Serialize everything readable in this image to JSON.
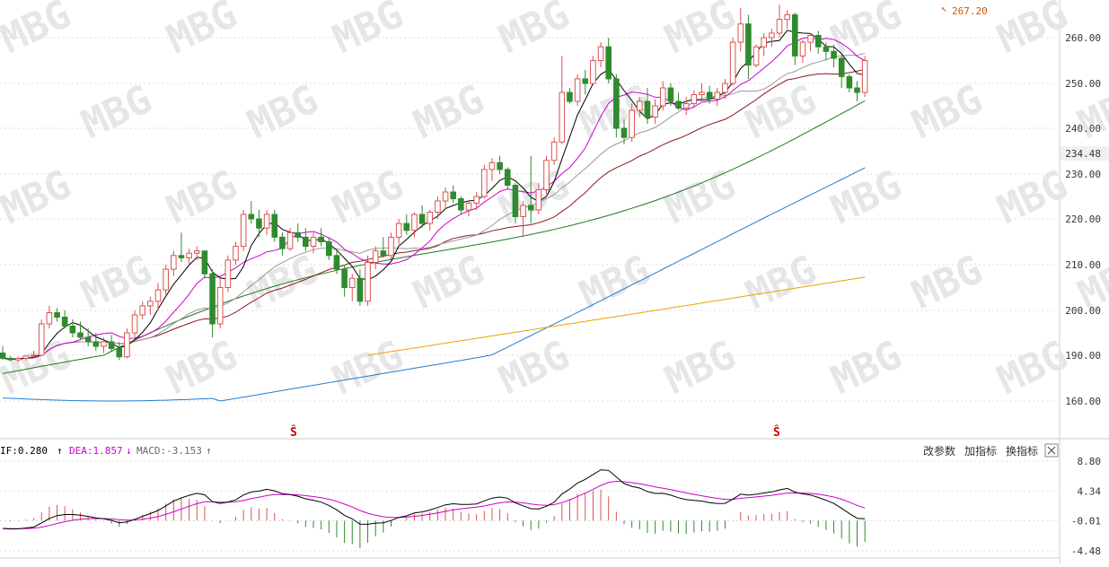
{
  "colors": {
    "up": "#d9534f",
    "down": "#2e8b2e",
    "ma5": "#000000",
    "ma10": "#cc00cc",
    "ma20": "#999999",
    "ma30": "#8b1a1a",
    "ma60": "#1f7a1f",
    "ma120": "#1e7ed6",
    "ma250": "#f0a000",
    "dif": "#000000",
    "dea": "#cc00cc",
    "grid": "#dddddd",
    "watermark": "#e6e6e6"
  },
  "watermark_text": "MBG",
  "main_chart": {
    "y_ticks": [
      "260.00",
      "250.00",
      "240.00",
      "234.48",
      "230.00",
      "220.00",
      "210.00",
      "200.00",
      "190.00",
      "160.00"
    ],
    "highlight_tick": "234.48",
    "high_annotation": "267.20",
    "event_markers": [
      "Ŝ",
      "Ŝ"
    ]
  },
  "macd_panel": {
    "dif_label": "IF:0.280",
    "dif_arrow": "↑",
    "dea_label": "DEA:1.857",
    "dea_arrow": "↓",
    "macd_label": "MACD:-3.153",
    "macd_arrow": "↑",
    "buttons": [
      "改参数",
      "加指标",
      "换指标"
    ],
    "close_icon": "close-icon",
    "y_ticks": [
      "8.80",
      "4.34",
      "-0.01",
      "-4.48"
    ]
  },
  "chart_data": {
    "type": "candlestick",
    "candles": [
      [
        190.5,
        192.0,
        187.0,
        188.0
      ],
      [
        188.0,
        189.5,
        186.0,
        187.0
      ],
      [
        187.0,
        189.0,
        185.5,
        188.0
      ],
      [
        188.0,
        190.0,
        186.5,
        189.5
      ],
      [
        189.5,
        191.0,
        188.0,
        190.0
      ],
      [
        190.0,
        198.0,
        189.5,
        197.0
      ],
      [
        197.0,
        201.0,
        196.0,
        199.5
      ],
      [
        199.5,
        200.5,
        197.5,
        198.5
      ],
      [
        198.5,
        200.0,
        196.0,
        196.5
      ],
      [
        196.5,
        198.0,
        194.0,
        195.0
      ],
      [
        195.0,
        197.5,
        193.5,
        194.0
      ],
      [
        194.0,
        196.0,
        192.0,
        193.0
      ],
      [
        193.0,
        195.0,
        191.0,
        192.0
      ],
      [
        192.0,
        194.0,
        190.5,
        193.0
      ],
      [
        193.0,
        194.5,
        191.0,
        191.5
      ],
      [
        191.5,
        193.0,
        187.0,
        189.0
      ],
      [
        189.0,
        196.0,
        188.0,
        195.0
      ],
      [
        195.0,
        200.0,
        194.0,
        199.0
      ],
      [
        199.0,
        202.0,
        198.0,
        201.0
      ],
      [
        201.0,
        203.0,
        199.0,
        202.0
      ],
      [
        202.0,
        206.0,
        200.0,
        204.5
      ],
      [
        204.5,
        210.0,
        203.5,
        209.0
      ],
      [
        209.0,
        213.0,
        207.5,
        212.0
      ],
      [
        212.0,
        217.0,
        210.5,
        211.5
      ],
      [
        211.5,
        213.5,
        210.0,
        212.5
      ],
      [
        212.5,
        214.0,
        211.0,
        213.0
      ],
      [
        213.0,
        212.5,
        207.0,
        208.0
      ],
      [
        208.0,
        209.0,
        194.0,
        197.0
      ],
      [
        197.0,
        207.0,
        196.0,
        205.0
      ],
      [
        205.0,
        212.0,
        204.0,
        211.0
      ],
      [
        211.0,
        215.0,
        210.0,
        214.0
      ],
      [
        214.0,
        222.0,
        213.0,
        221.0
      ],
      [
        221.0,
        224.0,
        219.0,
        220.0
      ],
      [
        220.0,
        222.0,
        216.0,
        218.0
      ],
      [
        218.0,
        222.0,
        216.5,
        221.0
      ],
      [
        221.0,
        222.0,
        215.0,
        216.0
      ],
      [
        216.0,
        217.0,
        212.0,
        213.5
      ],
      [
        213.5,
        218.0,
        213.0,
        217.0
      ],
      [
        217.0,
        219.0,
        215.0,
        216.0
      ],
      [
        216.0,
        218.0,
        213.0,
        214.0
      ],
      [
        214.0,
        217.0,
        212.5,
        216.0
      ],
      [
        216.0,
        218.0,
        214.0,
        215.0
      ],
      [
        215.0,
        216.0,
        211.0,
        212.0
      ],
      [
        212.0,
        213.5,
        208.0,
        209.0
      ],
      [
        209.0,
        210.0,
        203.0,
        205.0
      ],
      [
        205.0,
        208.0,
        202.0,
        207.0
      ],
      [
        207.0,
        209.0,
        201.0,
        202.0
      ],
      [
        202.0,
        212.0,
        201.0,
        210.5
      ],
      [
        210.5,
        214.0,
        209.0,
        213.0
      ],
      [
        213.0,
        216.0,
        211.5,
        212.0
      ],
      [
        212.0,
        217.0,
        211.0,
        216.0
      ],
      [
        216.0,
        220.0,
        214.5,
        219.0
      ],
      [
        219.0,
        221.0,
        216.5,
        217.5
      ],
      [
        217.5,
        221.5,
        216.0,
        221.0
      ],
      [
        221.0,
        223.0,
        218.0,
        219.0
      ],
      [
        219.0,
        222.0,
        217.5,
        221.5
      ],
      [
        221.5,
        225.0,
        220.0,
        224.0
      ],
      [
        224.0,
        227.0,
        222.0,
        226.0
      ],
      [
        226.0,
        227.5,
        223.5,
        224.5
      ],
      [
        224.5,
        225.0,
        221.0,
        222.0
      ],
      [
        222.0,
        224.0,
        220.5,
        223.5
      ],
      [
        223.5,
        226.0,
        222.0,
        225.0
      ],
      [
        225.0,
        232.0,
        224.5,
        231.0
      ],
      [
        231.0,
        233.5,
        228.5,
        232.5
      ],
      [
        232.5,
        234.0,
        230.0,
        231.0
      ],
      [
        231.0,
        231.5,
        226.5,
        227.5
      ],
      [
        227.5,
        228.0,
        219.0,
        220.5
      ],
      [
        220.5,
        224.0,
        216.0,
        223.0
      ],
      [
        223.0,
        234.0,
        219.0,
        222.0
      ],
      [
        222.0,
        228.0,
        221.0,
        226.5
      ],
      [
        226.5,
        234.0,
        225.5,
        233.0
      ],
      [
        233.0,
        238.0,
        232.0,
        237.0
      ],
      [
        237.0,
        256.0,
        236.5,
        248.0
      ],
      [
        248.0,
        249.0,
        245.5,
        246.0
      ],
      [
        246.0,
        252.0,
        245.0,
        251.0
      ],
      [
        251.0,
        253.0,
        247.5,
        250.0
      ],
      [
        250.0,
        256.0,
        249.5,
        255.0
      ],
      [
        255.0,
        259.0,
        253.5,
        258.0
      ],
      [
        258.0,
        260.0,
        250.0,
        251.0
      ],
      [
        251.0,
        252.0,
        238.0,
        240.0
      ],
      [
        240.0,
        242.0,
        236.5,
        238.0
      ],
      [
        238.0,
        245.5,
        237.0,
        244.0
      ],
      [
        244.0,
        247.0,
        242.5,
        246.0
      ],
      [
        246.0,
        249.0,
        241.0,
        242.5
      ],
      [
        242.5,
        246.5,
        241.0,
        245.0
      ],
      [
        245.0,
        250.5,
        244.0,
        249.0
      ],
      [
        249.0,
        250.0,
        245.0,
        246.0
      ],
      [
        246.0,
        248.0,
        244.0,
        244.5
      ],
      [
        244.5,
        247.0,
        243.0,
        245.5
      ],
      [
        245.5,
        248.5,
        244.5,
        247.5
      ],
      [
        247.5,
        250.0,
        246.0,
        248.0
      ],
      [
        248.0,
        249.5,
        245.5,
        246.5
      ],
      [
        246.5,
        249.0,
        245.0,
        248.0
      ],
      [
        248.0,
        251.0,
        246.5,
        250.0
      ],
      [
        250.0,
        260.0,
        249.5,
        259.0
      ],
      [
        259.0,
        266.5,
        257.0,
        263.0
      ],
      [
        263.0,
        265.0,
        251.0,
        254.0
      ],
      [
        254.0,
        258.5,
        253.5,
        258.0
      ],
      [
        258.0,
        261.0,
        256.0,
        260.0
      ],
      [
        260.0,
        262.0,
        258.0,
        261.0
      ],
      [
        261.0,
        267.2,
        260.0,
        264.0
      ],
      [
        264.0,
        266.0,
        262.0,
        265.0
      ],
      [
        265.0,
        265.5,
        254.0,
        256.0
      ],
      [
        256.0,
        259.5,
        254.5,
        259.0
      ],
      [
        259.0,
        261.0,
        257.0,
        260.5
      ],
      [
        260.5,
        261.5,
        256.5,
        258.0
      ],
      [
        258.0,
        259.0,
        255.0,
        257.0
      ],
      [
        257.0,
        258.5,
        253.5,
        255.5
      ],
      [
        255.5,
        256.0,
        249.0,
        251.5
      ],
      [
        251.5,
        252.0,
        248.0,
        249.0
      ],
      [
        249.0,
        250.5,
        246.0,
        248.0
      ],
      [
        248.0,
        256.0,
        247.0,
        255.0
      ]
    ],
    "macd": {
      "dif_last": 0.28,
      "dea_last": 1.857,
      "macd_last": -3.153,
      "y_range": [
        -4.48,
        8.8
      ]
    }
  }
}
